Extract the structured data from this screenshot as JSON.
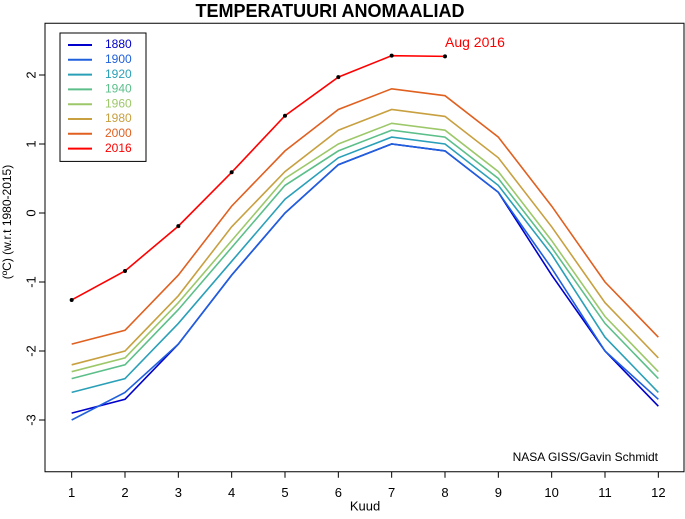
{
  "chart_data": {
    "type": "line",
    "title": "TEMPERATUURI ANOMAALIAD",
    "x_label": "Kuud",
    "y_label": "(ºC) (w.r.t 1980-2015)",
    "annotation": "Aug 2016",
    "credit": "NASA GISS/Gavin Schmidt",
    "x": [
      1,
      2,
      3,
      4,
      5,
      6,
      7,
      8,
      9,
      10,
      11,
      12
    ],
    "xlim": [
      0.5,
      12.5
    ],
    "xticks": [
      1,
      2,
      3,
      4,
      5,
      6,
      7,
      8,
      9,
      10,
      11,
      12
    ],
    "ylim": [
      -3.75,
      2.75
    ],
    "yticks": [
      -3,
      -2,
      -1,
      0,
      1,
      2
    ],
    "legend": "top-left",
    "series": [
      {
        "name": "1880",
        "color": "#0000cc",
        "values": [
          -2.9,
          -2.7,
          -1.9,
          -0.9,
          0.0,
          0.7,
          1.0,
          0.9,
          0.3,
          -0.9,
          -2.0,
          -2.8
        ]
      },
      {
        "name": "1900",
        "color": "#2060dd",
        "values": [
          -3.0,
          -2.6,
          -1.9,
          -0.9,
          0.0,
          0.7,
          1.0,
          0.9,
          0.3,
          -0.8,
          -2.0,
          -2.7
        ]
      },
      {
        "name": "1920",
        "color": "#2aa0b8",
        "values": [
          -2.6,
          -2.4,
          -1.6,
          -0.7,
          0.2,
          0.8,
          1.1,
          1.0,
          0.4,
          -0.6,
          -1.8,
          -2.6
        ]
      },
      {
        "name": "1940",
        "color": "#5cbf8a",
        "values": [
          -2.4,
          -2.2,
          -1.4,
          -0.5,
          0.4,
          0.9,
          1.2,
          1.1,
          0.5,
          -0.5,
          -1.6,
          -2.4
        ]
      },
      {
        "name": "1960",
        "color": "#9dc86a",
        "values": [
          -2.3,
          -2.1,
          -1.3,
          -0.4,
          0.5,
          1.0,
          1.3,
          1.2,
          0.6,
          -0.4,
          -1.5,
          -2.3
        ]
      },
      {
        "name": "1980",
        "color": "#c8a040",
        "values": [
          -2.2,
          -2.0,
          -1.2,
          -0.2,
          0.6,
          1.2,
          1.5,
          1.4,
          0.8,
          -0.2,
          -1.3,
          -2.1
        ]
      },
      {
        "name": "2000",
        "color": "#e06020",
        "values": [
          -1.9,
          -1.7,
          -0.9,
          0.1,
          0.9,
          1.5,
          1.8,
          1.7,
          1.1,
          0.1,
          -1.0,
          -1.8
        ]
      },
      {
        "name": "2016",
        "color": "#ff0000",
        "marker": true,
        "values": [
          -1.26,
          -0.84,
          -0.19,
          0.59,
          1.41,
          1.97,
          2.28,
          2.27,
          null,
          null,
          null,
          null
        ]
      }
    ]
  }
}
